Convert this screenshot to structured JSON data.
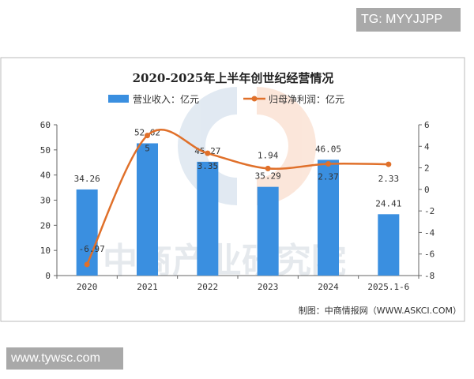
{
  "overlay": {
    "top_text": "TG: MYYJJPP",
    "bottom_text": "www.tywsc.com"
  },
  "chart_data": {
    "type": "bar+line",
    "title": "2020-2025年上半年创世纪经营情况",
    "categories": [
      "2020",
      "2021",
      "2022",
      "2023",
      "2024",
      "2025.1-6"
    ],
    "series": [
      {
        "name": "营业收入：亿元",
        "type": "bar",
        "axis": "left",
        "color": "#3a8fe0",
        "values": [
          34.26,
          52.62,
          45.27,
          35.29,
          46.05,
          24.41
        ]
      },
      {
        "name": "归母净利润：亿元",
        "type": "line",
        "axis": "right",
        "color": "#e0702a",
        "values": [
          -6.97,
          5,
          3.35,
          1.94,
          2.37,
          2.33
        ],
        "labels": [
          "-6.97",
          "5",
          "3.35",
          "1.94",
          "2.37",
          "2.33"
        ]
      }
    ],
    "y_left": {
      "range": [
        0,
        60
      ],
      "ticks": [
        "0",
        "10",
        "20",
        "30",
        "40",
        "50",
        "60"
      ]
    },
    "y_right": {
      "range": [
        -8,
        6
      ],
      "ticks": [
        "-8",
        "-6",
        "-4",
        "-2",
        "0",
        "2",
        "4",
        "6"
      ]
    },
    "legend_position": "top",
    "grid": false,
    "source": "制图：中商情报网（WWW.ASKCI.COM）",
    "watermark": "中商产业研究院"
  }
}
